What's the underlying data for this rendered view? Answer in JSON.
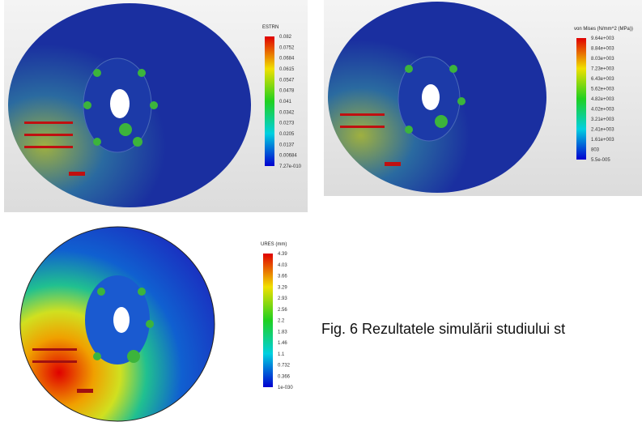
{
  "figure": {
    "panels": [
      {
        "legend": {
          "title": "ESTRN",
          "labels": [
            "0.082",
            "0.0752",
            "0.0684",
            "0.0615",
            "0.0547",
            "0.0478",
            "0.041",
            "0.0342",
            "0.0273",
            "0.0205",
            "0.0137",
            "0.00684",
            "7.27e-010"
          ]
        }
      },
      {
        "legend": {
          "title": "von Mises (N/mm^2 (MPa))",
          "labels": [
            "9.64e+003",
            "8.84e+003",
            "8.03e+003",
            "7.23e+003",
            "6.43e+003",
            "5.62e+003",
            "4.82e+003",
            "4.02e+003",
            "3.21e+003",
            "2.41e+003",
            "1.61e+003",
            "803",
            "5.5e-005"
          ]
        }
      },
      {
        "legend": {
          "title": "URES (mm)",
          "labels": [
            "4.39",
            "4.03",
            "3.66",
            "3.29",
            "2.93",
            "2.56",
            "2.2",
            "1.83",
            "1.46",
            "1.1",
            "0.732",
            "0.366",
            "1e-030"
          ]
        }
      }
    ],
    "caption": "Fig. 6 Rezultatele simulării studiului st"
  }
}
